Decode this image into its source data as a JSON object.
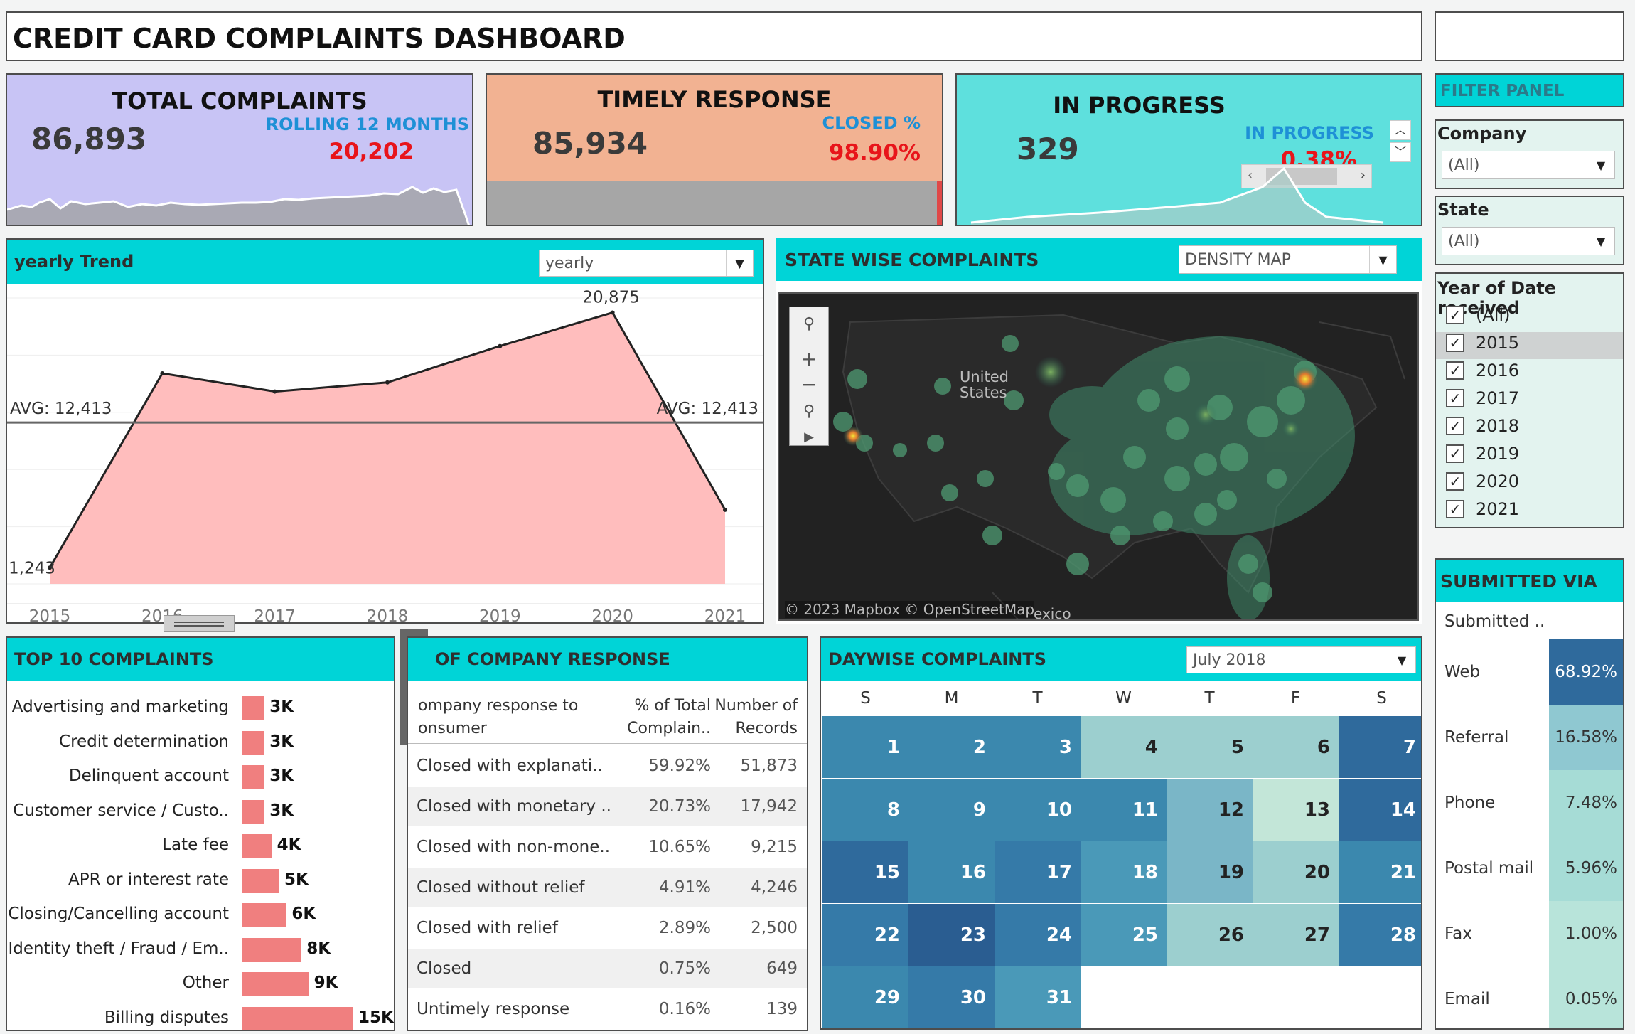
{
  "title": "CREDIT CARD COMPLAINTS DASHBOARD",
  "kpis": {
    "total": {
      "title": "TOTAL COMPLAINTS",
      "value": "86,893",
      "sub_label": "ROLLING 12 MONTHS",
      "sub_value": "20,202"
    },
    "timely": {
      "title": "TIMELY RESPONSE",
      "value": "85,934",
      "sub_label": "CLOSED %",
      "sub_value": "98.90%",
      "fill_fraction": 0.989
    },
    "progress": {
      "title": "IN PROGRESS",
      "value": "329",
      "sub_label": "IN PROGRESS",
      "sub_value": "0.38%"
    }
  },
  "filter_panel": {
    "title": "FILTER PANEL",
    "company_label": "Company",
    "company_value": "(All)",
    "state_label": "State",
    "state_value": "(All)",
    "year_label": "Year of Date received",
    "years": [
      {
        "label": "(All)",
        "checked": true
      },
      {
        "label": "2015",
        "checked": true
      },
      {
        "label": "2016",
        "checked": true
      },
      {
        "label": "2017",
        "checked": true
      },
      {
        "label": "2018",
        "checked": true
      },
      {
        "label": "2019",
        "checked": true
      },
      {
        "label": "2020",
        "checked": true
      },
      {
        "label": "2021",
        "checked": true
      }
    ]
  },
  "trend": {
    "title": "yearly Trend",
    "dropdown": "yearly",
    "avg_label": "AVG: 12,413",
    "min_label": "1,243",
    "max_label": "20,875"
  },
  "chart_data": {
    "type": "area",
    "title": "yearly Trend",
    "categories": [
      "2015",
      "2016",
      "2017",
      "2018",
      "2019",
      "2020",
      "2021"
    ],
    "values": [
      1243,
      16200,
      14800,
      15500,
      18300,
      20875,
      5700
    ],
    "reference_line": {
      "label": "AVG: 12,413",
      "value": 12413
    },
    "ylim": [
      0,
      22000
    ],
    "grid": true,
    "color": "#ffbdbd"
  },
  "map": {
    "title": "STATE WISE COMPLAINTS",
    "dropdown": "DENSITY MAP",
    "country_label_1": "United",
    "country_label_2": "States",
    "attribution": "© 2023 Mapbox © OpenStreetMap",
    "extra_label": "exico"
  },
  "top10": {
    "title": "TOP 10 COMPLAINTS",
    "items": [
      {
        "label": "Advertising and marketing",
        "value": 3,
        "display": "3K"
      },
      {
        "label": "Credit determination",
        "value": 3,
        "display": "3K"
      },
      {
        "label": "Delinquent account",
        "value": 3,
        "display": "3K"
      },
      {
        "label": "Customer service / Custo..",
        "value": 3,
        "display": "3K"
      },
      {
        "label": "Late fee",
        "value": 4,
        "display": "4K"
      },
      {
        "label": "APR or interest rate",
        "value": 5,
        "display": "5K"
      },
      {
        "label": "Closing/Cancelling account",
        "value": 6,
        "display": "6K"
      },
      {
        "label": "Identity theft / Fraud / Em..",
        "value": 8,
        "display": "8K"
      },
      {
        "label": "Other",
        "value": 9,
        "display": "9K"
      },
      {
        "label": "Billing disputes",
        "value": 15,
        "display": "15K"
      }
    ]
  },
  "response": {
    "title": "OF COMPANY RESPONSE",
    "col1": [
      "ompany response to",
      "onsumer"
    ],
    "col2": [
      "% of Total",
      "Complain.."
    ],
    "col3": [
      "Number of",
      "Records"
    ],
    "rows": [
      {
        "name": "Closed with explanati..",
        "pct": "59.92%",
        "count": "51,873"
      },
      {
        "name": "Closed with monetary ..",
        "pct": "20.73%",
        "count": "17,942"
      },
      {
        "name": "Closed with non-mone..",
        "pct": "10.65%",
        "count": "9,215"
      },
      {
        "name": "Closed without relief",
        "pct": "4.91%",
        "count": "4,246"
      },
      {
        "name": "Closed with relief",
        "pct": "2.89%",
        "count": "2,500"
      },
      {
        "name": "Closed",
        "pct": "0.75%",
        "count": "649"
      },
      {
        "name": "Untimely response",
        "pct": "0.16%",
        "count": "139"
      }
    ]
  },
  "daywise": {
    "title": "DAYWISE COMPLAINTS",
    "dropdown": "July 2018",
    "weekdays": [
      "S",
      "M",
      "T",
      "W",
      "T",
      "F",
      "S"
    ],
    "days": [
      {
        "d": "1",
        "c": "#3b88ae",
        "dark": false
      },
      {
        "d": "2",
        "c": "#3b88ae",
        "dark": false
      },
      {
        "d": "3",
        "c": "#3b88ae",
        "dark": false
      },
      {
        "d": "4",
        "c": "#9ccfcf",
        "dark": true
      },
      {
        "d": "5",
        "c": "#9ccfcf",
        "dark": true
      },
      {
        "d": "6",
        "c": "#9ccfcf",
        "dark": true
      },
      {
        "d": "7",
        "c": "#2f6a9c",
        "dark": false
      },
      {
        "d": "8",
        "c": "#3b88ae",
        "dark": false
      },
      {
        "d": "9",
        "c": "#3b88ae",
        "dark": false
      },
      {
        "d": "10",
        "c": "#3b88ae",
        "dark": false
      },
      {
        "d": "11",
        "c": "#3b88ae",
        "dark": false
      },
      {
        "d": "12",
        "c": "#7ab6c7",
        "dark": true
      },
      {
        "d": "13",
        "c": "#c3e6d8",
        "dark": true
      },
      {
        "d": "14",
        "c": "#2f6a9c",
        "dark": false
      },
      {
        "d": "15",
        "c": "#2f6a9c",
        "dark": false
      },
      {
        "d": "16",
        "c": "#3b88ae",
        "dark": false
      },
      {
        "d": "17",
        "c": "#357aa8",
        "dark": false
      },
      {
        "d": "18",
        "c": "#4a99b8",
        "dark": false
      },
      {
        "d": "19",
        "c": "#7ab6c7",
        "dark": true
      },
      {
        "d": "20",
        "c": "#9ccfcf",
        "dark": true
      },
      {
        "d": "21",
        "c": "#3b88ae",
        "dark": false
      },
      {
        "d": "22",
        "c": "#357aa8",
        "dark": false
      },
      {
        "d": "23",
        "c": "#2a5d91",
        "dark": false
      },
      {
        "d": "24",
        "c": "#357aa8",
        "dark": false
      },
      {
        "d": "25",
        "c": "#4a99b8",
        "dark": false
      },
      {
        "d": "26",
        "c": "#9ccfcf",
        "dark": true
      },
      {
        "d": "27",
        "c": "#9ccfcf",
        "dark": true
      },
      {
        "d": "28",
        "c": "#357aa8",
        "dark": false
      },
      {
        "d": "29",
        "c": "#3b88ae",
        "dark": false
      },
      {
        "d": "30",
        "c": "#357aa8",
        "dark": false
      },
      {
        "d": "31",
        "c": "#4a99b8",
        "dark": false
      }
    ]
  },
  "submitted": {
    "title": "SUBMITTED VIA",
    "header": "Submitted ..",
    "rows": [
      {
        "name": "Web",
        "pct": "68.92%",
        "c": "#2f6a9c",
        "light": true
      },
      {
        "name": "Referral",
        "pct": "16.58%",
        "c": "#8fc8d1",
        "light": false
      },
      {
        "name": "Phone",
        "pct": "7.48%",
        "c": "#a6dcd6",
        "light": false
      },
      {
        "name": "Postal mail",
        "pct": "5.96%",
        "c": "#a6dcd6",
        "light": false
      },
      {
        "name": "Fax",
        "pct": "1.00%",
        "c": "#b8e4da",
        "light": false
      },
      {
        "name": "Email",
        "pct": "0.05%",
        "c": "#b8e4da",
        "light": false
      }
    ]
  }
}
